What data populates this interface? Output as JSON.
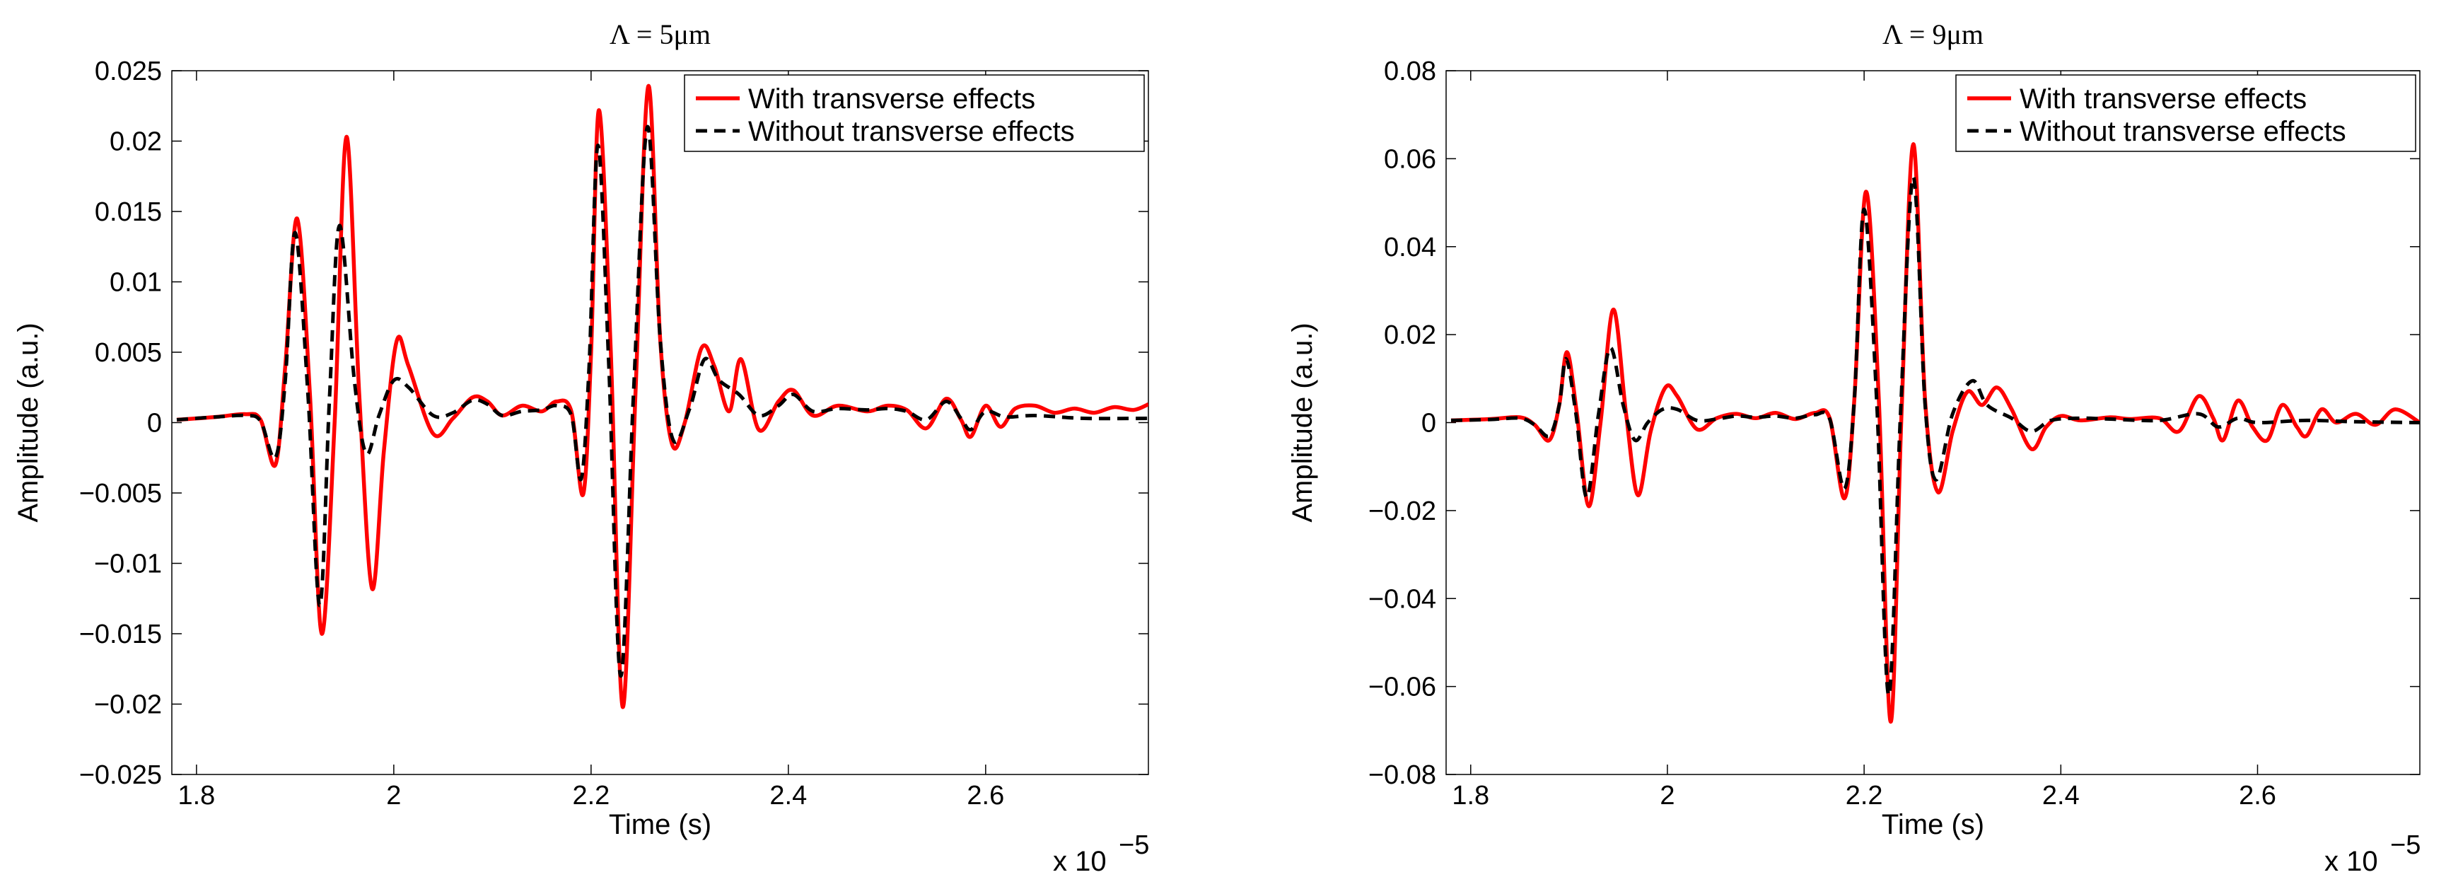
{
  "chart_data": [
    {
      "type": "line",
      "title": "Λ = 5μm",
      "xlabel": "Time (s)",
      "ylabel": "Amplitude (a.u.)",
      "x_multiplier": "x 10",
      "x_multiplier_exp": "−5",
      "xlim": [
        1.775,
        2.765
      ],
      "ylim": [
        -0.025,
        0.025
      ],
      "xticks": [
        1.8,
        2.0,
        2.2,
        2.4,
        2.6
      ],
      "xtick_labels": [
        "1.8",
        "2",
        "2.2",
        "2.4",
        "2.6"
      ],
      "yticks": [
        0.025,
        0.02,
        0.015,
        0.01,
        0.005,
        0,
        -0.005,
        -0.01,
        -0.015,
        -0.02,
        -0.025
      ],
      "ytick_labels": [
        "0.025",
        "0.02",
        "0.015",
        "0.01",
        "0.005",
        "0",
        "−0.005",
        "−0.01",
        "−0.015",
        "−0.02",
        "−0.025"
      ],
      "legend": {
        "position": "top-right",
        "entries": [
          "With transverse effects",
          "Without transverse effects"
        ]
      },
      "series": [
        {
          "name": "With transverse effects",
          "color": "#ff0000",
          "style": "solid",
          "points": [
            [
              1.78,
              0.0002
            ],
            [
              1.82,
              0.0004
            ],
            [
              1.85,
              0.0006
            ],
            [
              1.865,
              0.0002
            ],
            [
              1.88,
              -0.003
            ],
            [
              1.89,
              0.004
            ],
            [
              1.902,
              0.0145
            ],
            [
              1.915,
              0.002
            ],
            [
              1.927,
              -0.015
            ],
            [
              1.94,
              0.0
            ],
            [
              1.952,
              0.0203
            ],
            [
              1.965,
              0.002
            ],
            [
              1.978,
              -0.0118
            ],
            [
              1.99,
              -0.002
            ],
            [
              2.003,
              0.0058
            ],
            [
              2.015,
              0.004
            ],
            [
              2.04,
              -0.0008
            ],
            [
              2.06,
              0.0003
            ],
            [
              2.08,
              0.0018
            ],
            [
              2.095,
              0.0015
            ],
            [
              2.11,
              0.0005
            ],
            [
              2.13,
              0.0012
            ],
            [
              2.15,
              0.0008
            ],
            [
              2.165,
              0.0015
            ],
            [
              2.18,
              0.0008
            ],
            [
              2.192,
              -0.0051
            ],
            [
              2.2,
              0.005
            ],
            [
              2.208,
              0.0222
            ],
            [
              2.22,
              0.005
            ],
            [
              2.232,
              -0.0202
            ],
            [
              2.245,
              0.002
            ],
            [
              2.258,
              0.0239
            ],
            [
              2.27,
              0.006
            ],
            [
              2.282,
              -0.0015
            ],
            [
              2.295,
              0.0
            ],
            [
              2.312,
              0.0053
            ],
            [
              2.325,
              0.004
            ],
            [
              2.34,
              0.0008
            ],
            [
              2.352,
              0.0045
            ],
            [
              2.37,
              -0.0005
            ],
            [
              2.39,
              0.0015
            ],
            [
              2.405,
              0.0023
            ],
            [
              2.425,
              0.0005
            ],
            [
              2.45,
              0.0012
            ],
            [
              2.48,
              0.0008
            ],
            [
              2.5,
              0.0012
            ],
            [
              2.52,
              0.0009
            ],
            [
              2.54,
              -0.0004
            ],
            [
              2.56,
              0.0017
            ],
            [
              2.575,
              0.0002
            ],
            [
              2.585,
              -0.001
            ],
            [
              2.6,
              0.0012
            ],
            [
              2.615,
              -0.0003
            ],
            [
              2.63,
              0.001
            ],
            [
              2.65,
              0.0012
            ],
            [
              2.67,
              0.0007
            ],
            [
              2.69,
              0.001
            ],
            [
              2.71,
              0.0007
            ],
            [
              2.73,
              0.0011
            ],
            [
              2.75,
              0.0009
            ],
            [
              2.765,
              0.0013
            ]
          ]
        },
        {
          "name": "Without transverse effects",
          "color": "#000000",
          "style": "dashed",
          "points": [
            [
              1.78,
              0.0002
            ],
            [
              1.82,
              0.0004
            ],
            [
              1.85,
              0.0005
            ],
            [
              1.865,
              0.0001
            ],
            [
              1.88,
              -0.0025
            ],
            [
              1.89,
              0.003
            ],
            [
              1.9,
              0.0135
            ],
            [
              1.913,
              0.002
            ],
            [
              1.925,
              -0.013
            ],
            [
              1.935,
              0.002
            ],
            [
              1.945,
              0.014
            ],
            [
              1.96,
              0.003
            ],
            [
              1.972,
              -0.0022
            ],
            [
              1.985,
              0.0005
            ],
            [
              2.0,
              0.003
            ],
            [
              2.015,
              0.0025
            ],
            [
              2.04,
              0.0005
            ],
            [
              2.06,
              0.0007
            ],
            [
              2.08,
              0.0016
            ],
            [
              2.095,
              0.0013
            ],
            [
              2.11,
              0.0005
            ],
            [
              2.13,
              0.0008
            ],
            [
              2.15,
              0.0009
            ],
            [
              2.165,
              0.0012
            ],
            [
              2.18,
              0.0005
            ],
            [
              2.19,
              -0.004
            ],
            [
              2.198,
              0.004
            ],
            [
              2.207,
              0.0197
            ],
            [
              2.218,
              0.004
            ],
            [
              2.23,
              -0.018
            ],
            [
              2.243,
              0.002
            ],
            [
              2.257,
              0.021
            ],
            [
              2.27,
              0.006
            ],
            [
              2.283,
              -0.0012
            ],
            [
              2.3,
              0.001
            ],
            [
              2.315,
              0.0045
            ],
            [
              2.33,
              0.003
            ],
            [
              2.35,
              0.002
            ],
            [
              2.37,
              0.0005
            ],
            [
              2.39,
              0.0012
            ],
            [
              2.405,
              0.002
            ],
            [
              2.425,
              0.0008
            ],
            [
              2.45,
              0.001
            ],
            [
              2.48,
              0.0009
            ],
            [
              2.5,
              0.001
            ],
            [
              2.52,
              0.0008
            ],
            [
              2.54,
              0.0002
            ],
            [
              2.56,
              0.0015
            ],
            [
              2.575,
              0.0003
            ],
            [
              2.585,
              -0.0005
            ],
            [
              2.6,
              0.0008
            ],
            [
              2.62,
              0.0004
            ],
            [
              2.65,
              0.0005
            ],
            [
              2.7,
              0.0003
            ],
            [
              2.765,
              0.0003
            ]
          ]
        }
      ]
    },
    {
      "type": "line",
      "title": "Λ = 9μm",
      "xlabel": "Time (s)",
      "ylabel": "Amplitude (a.u.)",
      "x_multiplier": "x 10",
      "x_multiplier_exp": "−5",
      "xlim": [
        1.775,
        2.765
      ],
      "ylim": [
        -0.08,
        0.08
      ],
      "xticks": [
        1.8,
        2.0,
        2.2,
        2.4,
        2.6
      ],
      "xtick_labels": [
        "1.8",
        "2",
        "2.2",
        "2.4",
        "2.6"
      ],
      "yticks": [
        0.08,
        0.06,
        0.04,
        0.02,
        0,
        -0.02,
        -0.04,
        -0.06,
        -0.08
      ],
      "ytick_labels": [
        "0.08",
        "0.06",
        "0.04",
        "0.02",
        "0",
        "−0.02",
        "−0.04",
        "−0.06",
        "−0.08"
      ],
      "legend": {
        "position": "top-right",
        "entries": [
          "With transverse effects",
          "Without transverse effects"
        ]
      },
      "series": [
        {
          "name": "With transverse effects",
          "color": "#ff0000",
          "style": "solid",
          "points": [
            [
              1.78,
              0.0005
            ],
            [
              1.82,
              0.0008
            ],
            [
              1.85,
              0.0012
            ],
            [
              1.865,
              -0.0005
            ],
            [
              1.88,
              -0.004
            ],
            [
              1.89,
              0.004
            ],
            [
              1.898,
              0.016
            ],
            [
              1.908,
              0.002
            ],
            [
              1.92,
              -0.019
            ],
            [
              1.932,
              0.0
            ],
            [
              1.945,
              0.0257
            ],
            [
              1.958,
              0.002
            ],
            [
              1.97,
              -0.0165
            ],
            [
              1.983,
              -0.002
            ],
            [
              1.998,
              0.008
            ],
            [
              2.01,
              0.006
            ],
            [
              2.03,
              -0.0015
            ],
            [
              2.05,
              0.001
            ],
            [
              2.07,
              0.002
            ],
            [
              2.09,
              0.001
            ],
            [
              2.11,
              0.0022
            ],
            [
              2.13,
              0.0008
            ],
            [
              2.15,
              0.0022
            ],
            [
              2.165,
              0.001
            ],
            [
              2.18,
              -0.0172
            ],
            [
              2.19,
              0.005
            ],
            [
              2.202,
              0.0525
            ],
            [
              2.215,
              0.005
            ],
            [
              2.227,
              -0.068
            ],
            [
              2.238,
              0.002
            ],
            [
              2.25,
              0.0633
            ],
            [
              2.262,
              0.005
            ],
            [
              2.275,
              -0.0158
            ],
            [
              2.29,
              -0.002
            ],
            [
              2.305,
              0.007
            ],
            [
              2.32,
              0.004
            ],
            [
              2.335,
              0.008
            ],
            [
              2.35,
              0.003
            ],
            [
              2.37,
              -0.006
            ],
            [
              2.385,
              -0.001
            ],
            [
              2.4,
              0.0015
            ],
            [
              2.42,
              0.0005
            ],
            [
              2.45,
              0.0012
            ],
            [
              2.47,
              0.0008
            ],
            [
              2.5,
              0.001
            ],
            [
              2.52,
              -0.002
            ],
            [
              2.54,
              0.006
            ],
            [
              2.555,
              0.001
            ],
            [
              2.565,
              -0.004
            ],
            [
              2.58,
              0.005
            ],
            [
              2.595,
              -0.001
            ],
            [
              2.61,
              -0.004
            ],
            [
              2.625,
              0.004
            ],
            [
              2.64,
              -0.001
            ],
            [
              2.65,
              -0.003
            ],
            [
              2.665,
              0.003
            ],
            [
              2.68,
              0.0
            ],
            [
              2.7,
              0.002
            ],
            [
              2.72,
              -0.0005
            ],
            [
              2.74,
              0.003
            ],
            [
              2.765,
              0.0
            ]
          ]
        },
        {
          "name": "Without transverse effects",
          "color": "#000000",
          "style": "dashed",
          "points": [
            [
              1.78,
              0.0005
            ],
            [
              1.82,
              0.0007
            ],
            [
              1.85,
              0.001
            ],
            [
              1.865,
              -0.0005
            ],
            [
              1.88,
              -0.003
            ],
            [
              1.89,
              0.004
            ],
            [
              1.897,
              0.0145
            ],
            [
              1.907,
              0.002
            ],
            [
              1.918,
              -0.017
            ],
            [
              1.93,
              0.002
            ],
            [
              1.942,
              0.017
            ],
            [
              1.955,
              0.004
            ],
            [
              1.967,
              -0.004
            ],
            [
              1.98,
              0.0
            ],
            [
              1.995,
              0.003
            ],
            [
              2.01,
              0.003
            ],
            [
              2.03,
              0.0005
            ],
            [
              2.05,
              0.0008
            ],
            [
              2.07,
              0.0015
            ],
            [
              2.09,
              0.0012
            ],
            [
              2.11,
              0.0015
            ],
            [
              2.13,
              0.001
            ],
            [
              2.15,
              0.0018
            ],
            [
              2.165,
              0.0008
            ],
            [
              2.18,
              -0.015
            ],
            [
              2.19,
              0.005
            ],
            [
              2.2,
              0.0485
            ],
            [
              2.213,
              0.004
            ],
            [
              2.225,
              -0.062
            ],
            [
              2.237,
              0.002
            ],
            [
              2.25,
              0.0558
            ],
            [
              2.262,
              0.004
            ],
            [
              2.273,
              -0.013
            ],
            [
              2.29,
              0.002
            ],
            [
              2.31,
              0.0095
            ],
            [
              2.325,
              0.004
            ],
            [
              2.35,
              0.001
            ],
            [
              2.37,
              -0.002
            ],
            [
              2.39,
              0.0005
            ],
            [
              2.42,
              0.001
            ],
            [
              2.45,
              0.0008
            ],
            [
              2.5,
              0.0005
            ],
            [
              2.54,
              0.002
            ],
            [
              2.56,
              -0.001
            ],
            [
              2.58,
              0.001
            ],
            [
              2.6,
              0.0
            ],
            [
              2.65,
              0.0005
            ],
            [
              2.7,
              0.0002
            ],
            [
              2.765,
              0.0
            ]
          ]
        }
      ]
    }
  ]
}
